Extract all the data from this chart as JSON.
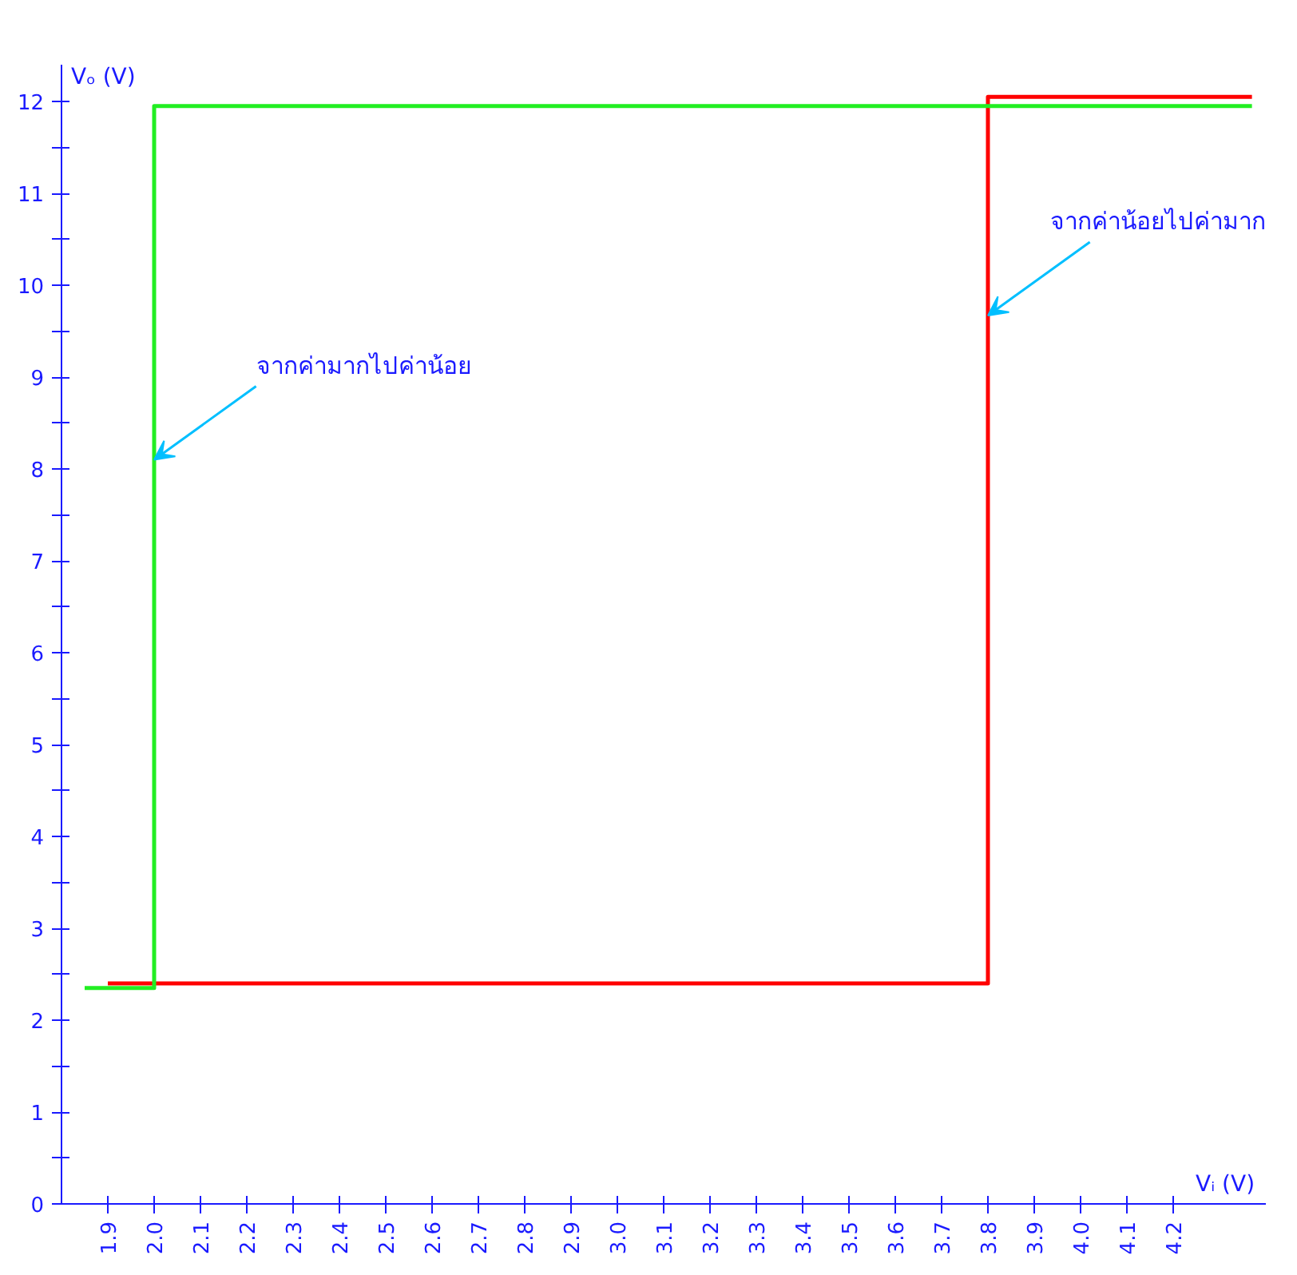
{
  "chart_data": {
    "type": "line",
    "xlabel": "Vᵢ (V)",
    "ylabel": "Vₒ (V)",
    "xlim": [
      1.8,
      4.4
    ],
    "ylim": [
      0,
      12.4
    ],
    "xticks": [
      1.9,
      {
        "value": 2,
        "label": "2.0"
      },
      2.1,
      2.2,
      2.3,
      2.4,
      2.5,
      2.6,
      2.7,
      2.8,
      2.9,
      {
        "value": 3,
        "label": "3.0"
      },
      3.1,
      3.2,
      3.3,
      3.4,
      3.5,
      3.6,
      3.7,
      3.8,
      3.9,
      {
        "value": 4,
        "label": "4.0"
      },
      4.1,
      4.2
    ],
    "yticks": [
      0,
      {
        "value": 0.5,
        "label": null
      },
      1,
      {
        "value": 1.5,
        "label": null
      },
      2,
      {
        "value": 2.5,
        "label": null
      },
      3,
      {
        "value": 3.5,
        "label": null
      },
      4,
      {
        "value": 4.5,
        "label": null
      },
      5,
      {
        "value": 5.5,
        "label": null
      },
      6,
      {
        "value": 6.5,
        "label": null
      },
      7,
      {
        "value": 7.5,
        "label": null
      },
      8,
      {
        "value": 8.5,
        "label": null
      },
      9,
      {
        "value": 9.5,
        "label": null
      },
      10,
      {
        "value": 10.5,
        "label": null
      },
      11,
      {
        "value": 11.5,
        "label": null
      },
      12
    ],
    "series": [
      {
        "color": "#ff0000",
        "x": [
          1.9,
          3.8,
          3.8,
          4.37
        ],
        "values": [
          2.4,
          2.4,
          12.05,
          12.05
        ]
      },
      {
        "color": "#22ee22",
        "x": [
          1.85,
          2.0,
          2.0,
          4.37
        ],
        "values": [
          2.35,
          2.35,
          11.95,
          11.95
        ]
      }
    ],
    "annotations": [
      {
        "text": "จากค่ามากไปค่าน้อย",
        "x": 2.0,
        "y": 8.1
      },
      {
        "text": "จากค่าน้อยไปค่ามาก",
        "x": 3.8,
        "y": 9.67
      }
    ],
    "marker": "none",
    "line_style": "solid"
  }
}
